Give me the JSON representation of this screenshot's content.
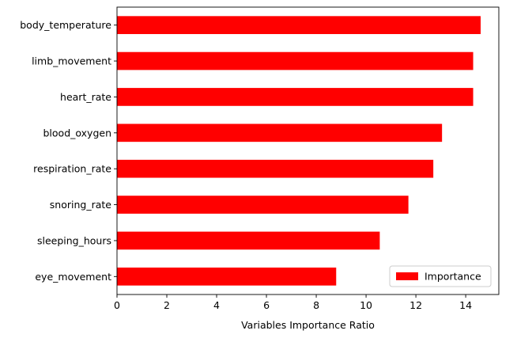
{
  "chart_data": {
    "type": "bar",
    "orientation": "horizontal",
    "categories": [
      "eye_movement",
      "sleeping_hours",
      "snoring_rate",
      "respiration_rate",
      "blood_oxygen",
      "heart_rate",
      "limb_movement",
      "body_temperature"
    ],
    "series": [
      {
        "name": "Importance",
        "color": "#ff0000",
        "values": [
          8.8,
          10.55,
          11.7,
          12.7,
          13.05,
          14.3,
          14.3,
          14.6
        ]
      }
    ],
    "xlabel": "Variables Importance Ratio",
    "ylabel": "",
    "title": "",
    "xlim": [
      0,
      15.33
    ],
    "xticks": [
      0,
      2,
      4,
      6,
      8,
      10,
      12,
      14
    ],
    "grid": false,
    "legend_position": "lower-right"
  }
}
